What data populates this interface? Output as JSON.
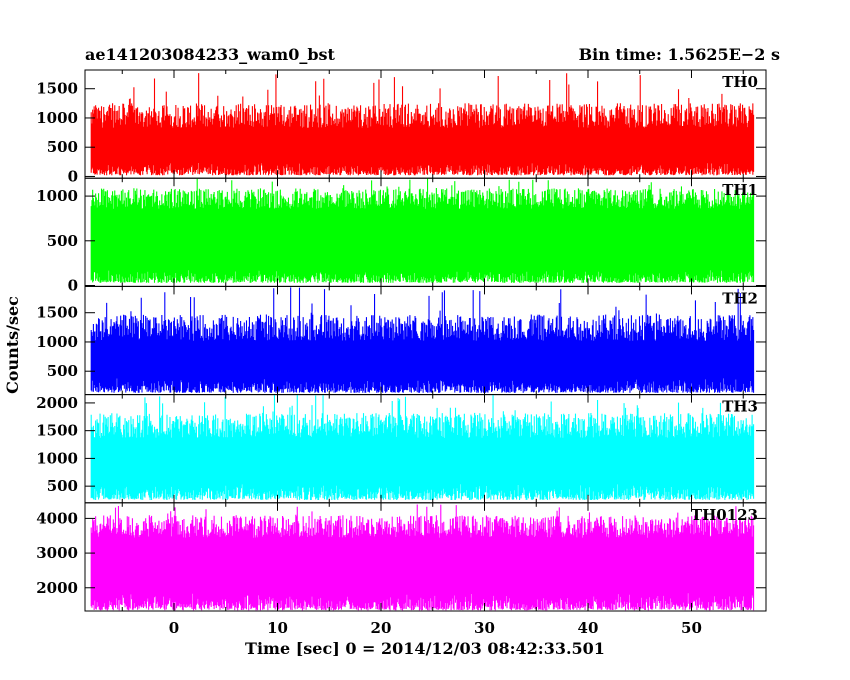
{
  "chart_data": {
    "type": "line",
    "title": "ae141203084233_wam0_bst",
    "subtitle": "Bin time: 1.5625E−2 s",
    "xlabel": "Time [sec] 0 = 2014/12/03 08:42:33.501",
    "ylabel": "Counts/sec",
    "xlim": [
      -8.6,
      57.2
    ],
    "data_x_range": [
      -8,
      56
    ],
    "x_ticks": [
      "0",
      "10",
      "20",
      "30",
      "40",
      "50"
    ],
    "x_tick_values": [
      0,
      10,
      20,
      30,
      40,
      50
    ],
    "panels": [
      {
        "name": "TH0",
        "color": "#ff0000",
        "ylim": [
          -30,
          1820
        ],
        "y_ticks": [
          "0",
          "500",
          "1000",
          "1500"
        ],
        "y_tick_values": [
          0,
          500,
          1000,
          1500
        ],
        "low_envelope": 20,
        "low_spread": 220,
        "high_envelope": 1000,
        "high_spread": 420,
        "spike_max": 1800
      },
      {
        "name": "TH1",
        "color": "#00ff00",
        "ylim": [
          -10,
          1200
        ],
        "y_ticks": [
          "0",
          "500",
          "1000"
        ],
        "y_tick_values": [
          0,
          500,
          1000
        ],
        "low_envelope": 30,
        "low_spread": 150,
        "high_envelope": 950,
        "high_spread": 230,
        "spike_max": 1200
      },
      {
        "name": "TH2",
        "color": "#0000ff",
        "ylim": [
          100,
          1950
        ],
        "y_ticks": [
          "500",
          "1000",
          "1500"
        ],
        "y_tick_values": [
          500,
          1000,
          1500
        ],
        "low_envelope": 130,
        "low_spread": 250,
        "high_envelope": 1200,
        "high_spread": 450,
        "spike_max": 1950
      },
      {
        "name": "TH3",
        "color": "#00ffff",
        "ylim": [
          200,
          2150
        ],
        "y_ticks": [
          "500",
          "1000",
          "1500",
          "2000"
        ],
        "y_tick_values": [
          500,
          1000,
          1500,
          2000
        ],
        "low_envelope": 250,
        "low_spread": 300,
        "high_envelope": 1550,
        "high_spread": 450,
        "spike_max": 2150
      },
      {
        "name": "TH0123",
        "color": "#ff00ff",
        "ylim": [
          1330,
          4450
        ],
        "y_ticks": [
          "2000",
          "3000",
          "4000"
        ],
        "y_tick_values": [
          2000,
          3000,
          4000
        ],
        "low_envelope": 1350,
        "low_spread": 500,
        "high_envelope": 3700,
        "high_spread": 650,
        "spike_max": 4450
      }
    ]
  }
}
